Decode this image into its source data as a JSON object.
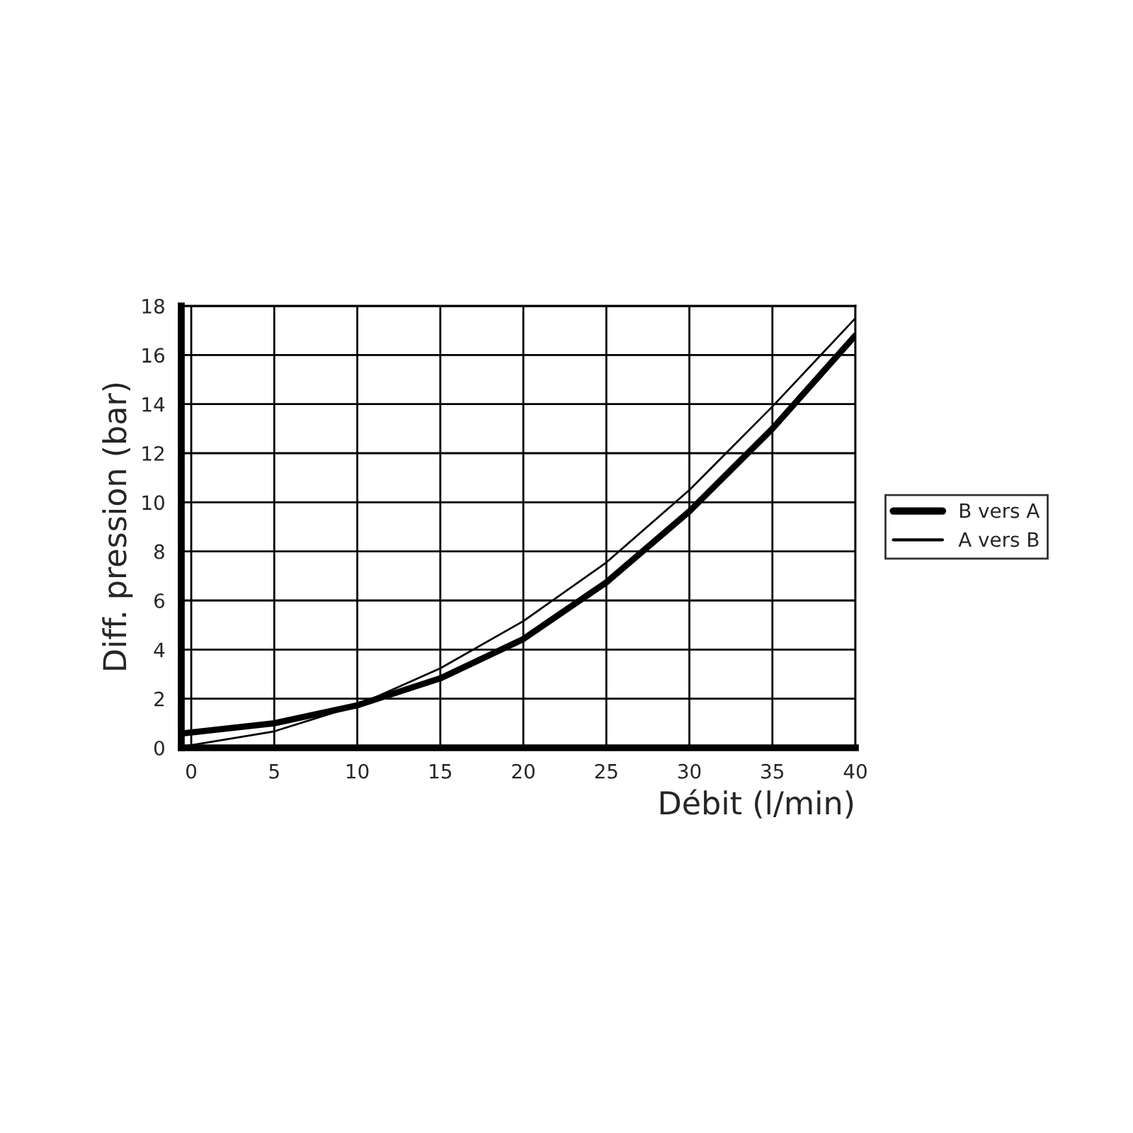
{
  "chart_data": {
    "type": "line",
    "xlabel": "Débit (l/min)",
    "ylabel": "Diff. pression (bar)",
    "x": [
      -0.6,
      5,
      10,
      15,
      20,
      25,
      30,
      35,
      40
    ],
    "series": [
      {
        "name": "B vers A",
        "color": "#000000",
        "values": [
          0.58,
          1.0,
          1.73,
          2.83,
          4.43,
          6.74,
          9.63,
          13.0,
          16.8
        ]
      },
      {
        "name": "A vers B",
        "color": "#000000",
        "values": [
          0.04,
          0.67,
          1.73,
          3.24,
          5.16,
          7.55,
          10.5,
          13.9,
          17.5
        ]
      }
    ],
    "xlim": [
      -0.6,
      40
    ],
    "ylim": [
      0,
      18
    ],
    "xticks": [
      0,
      5,
      10,
      15,
      20,
      25,
      30,
      35,
      40
    ],
    "yticks": [
      0,
      2,
      4,
      6,
      8,
      10,
      12,
      14,
      16,
      18
    ],
    "grid": true,
    "legend": "right",
    "marker": "none",
    "line_style": "solid"
  }
}
